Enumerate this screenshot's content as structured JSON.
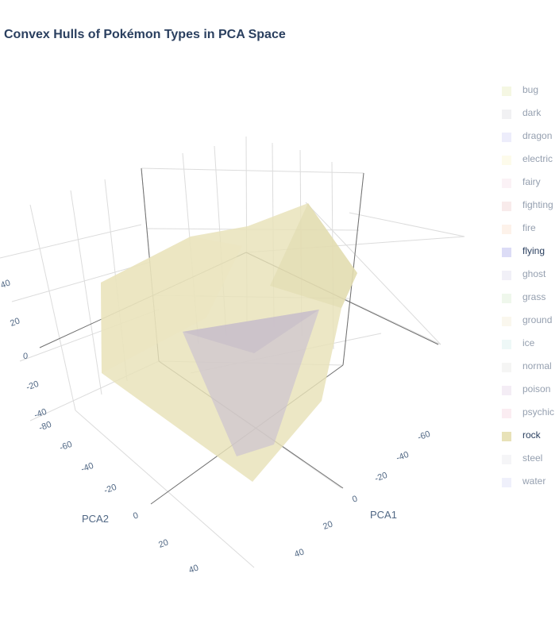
{
  "chart_data": {
    "type": "mesh3d",
    "title": "Convex Hulls of Pokémon Types in PCA Space",
    "axes": {
      "x": {
        "label": "PCA1",
        "ticks": [
          -60,
          -40,
          -20,
          0,
          20,
          40
        ]
      },
      "y": {
        "label": "PCA2",
        "ticks": [
          -80,
          -60,
          -40,
          -20,
          0,
          20,
          40
        ]
      },
      "z": {
        "label": "",
        "ticks": [
          -40,
          -20,
          0,
          20,
          40
        ]
      }
    },
    "legend_position": "right",
    "series": [
      {
        "name": "bug",
        "color": "#ebf0c8",
        "visible": false
      },
      {
        "name": "dark",
        "color": "#e3e3e8",
        "visible": false
      },
      {
        "name": "dragon",
        "color": "#dcdcf8",
        "visible": false
      },
      {
        "name": "electric",
        "color": "#fbf8d8",
        "visible": false
      },
      {
        "name": "fairy",
        "color": "#f8e6ee",
        "visible": false
      },
      {
        "name": "fighting",
        "color": "#f2d8d8",
        "visible": false
      },
      {
        "name": "fire",
        "color": "#fbe6d6",
        "visible": false
      },
      {
        "name": "flying",
        "color": "#dcdcf6",
        "visible": true
      },
      {
        "name": "ghost",
        "color": "#e4e2f0",
        "visible": false
      },
      {
        "name": "grass",
        "color": "#e0f0da",
        "visible": false
      },
      {
        "name": "ground",
        "color": "#f6efde",
        "visible": false
      },
      {
        "name": "ice",
        "color": "#def1f0",
        "visible": false
      },
      {
        "name": "normal",
        "color": "#ececea",
        "visible": false
      },
      {
        "name": "poison",
        "color": "#eadcec",
        "visible": false
      },
      {
        "name": "psychic",
        "color": "#f8dce6",
        "visible": false
      },
      {
        "name": "rock",
        "color": "#e8e2b8",
        "visible": true
      },
      {
        "name": "steel",
        "color": "#ebebf0",
        "visible": false
      },
      {
        "name": "water",
        "color": "#dfe2f8",
        "visible": false
      }
    ]
  }
}
